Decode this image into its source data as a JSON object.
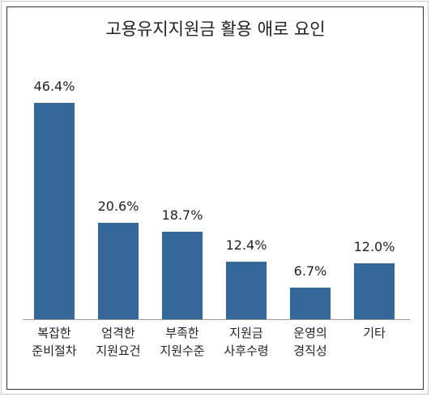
{
  "chart_data": {
    "type": "bar",
    "title": "고용유지지원금 활용 애로 요인",
    "categories": [
      "복잡한\n준비절차",
      "엄격한\n지원요건",
      "부족한\n지원수준",
      "지원금\n사후수령",
      "운영의\n경직성",
      "기타"
    ],
    "values": [
      46.4,
      20.6,
      18.7,
      12.4,
      6.7,
      12.0
    ],
    "value_labels": [
      "46.4%",
      "20.6%",
      "18.7%",
      "12.4%",
      "6.7%",
      "12.0%"
    ],
    "color": "#336699"
  }
}
